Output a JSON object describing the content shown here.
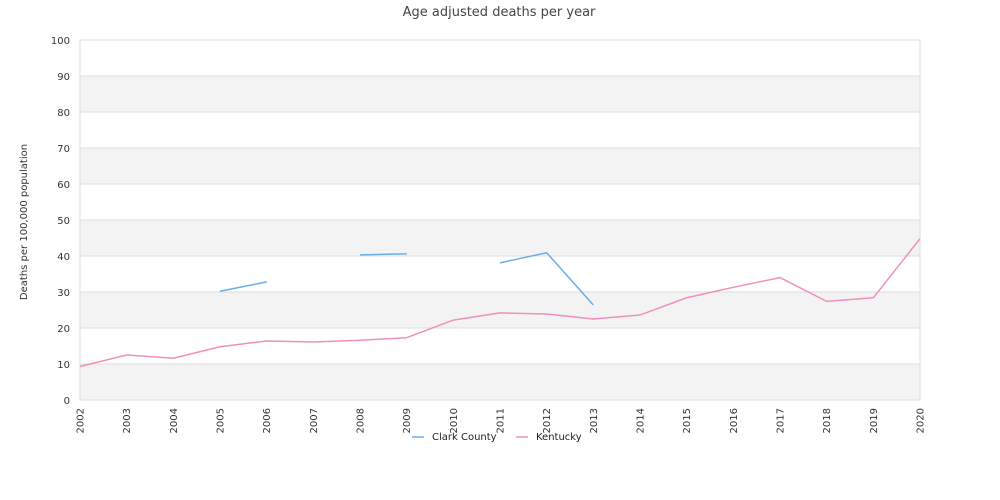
{
  "chart_data": {
    "type": "line",
    "title": "Age adjusted deaths per year",
    "xlabel": "",
    "ylabel": "Deaths per 100,000 population",
    "ylim": [
      0,
      100
    ],
    "yticks": [
      0,
      10,
      20,
      30,
      40,
      50,
      60,
      70,
      80,
      90,
      100
    ],
    "x": [
      "2002",
      "2003",
      "2004",
      "2005",
      "2006",
      "2007",
      "2008",
      "2009",
      "2010",
      "2011",
      "2012",
      "2013",
      "2014",
      "2015",
      "2016",
      "2017",
      "2018",
      "2019",
      "2020"
    ],
    "grid": true,
    "legend_position": "bottom",
    "series": [
      {
        "name": "Clark County",
        "color": "#6aaee8",
        "values": [
          null,
          null,
          null,
          30.2,
          32.8,
          null,
          40.3,
          40.6,
          null,
          38.1,
          40.9,
          26.4,
          null,
          null,
          null,
          null,
          null,
          null,
          null
        ]
      },
      {
        "name": "Kentucky",
        "color": "#ef8fbe",
        "values": [
          9.3,
          12.5,
          11.6,
          14.8,
          16.4,
          16.1,
          16.6,
          17.3,
          22.2,
          24.2,
          23.9,
          22.5,
          23.6,
          28.4,
          31.3,
          34.0,
          27.4,
          28.4,
          44.8
        ]
      }
    ]
  }
}
